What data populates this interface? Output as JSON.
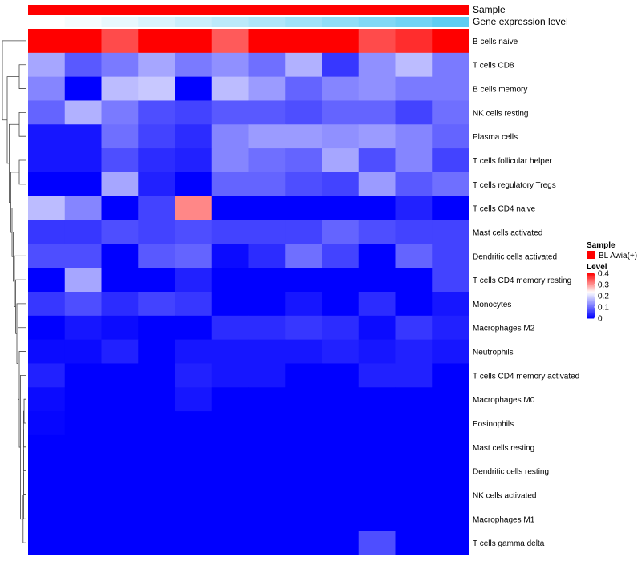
{
  "chart_data": {
    "type": "heatmap",
    "annotation_labels": [
      "Sample",
      "Gene expression level"
    ],
    "sample_annotation": {
      "legend_title": "Sample",
      "entries": [
        {
          "label": "BL Awia(+)",
          "color": "#ff0000"
        }
      ]
    },
    "color_scale": {
      "title": "Level",
      "ticks": [
        "0.4",
        "0.3",
        "0.2",
        "0.1",
        "0"
      ],
      "tick_values": [
        0.4,
        0.3,
        0.2,
        0.1,
        0
      ],
      "min": 0,
      "max": 0.4,
      "colors": [
        "#0000ff",
        "#ffffff",
        "#ff0000"
      ],
      "mid": 0.23
    },
    "gene_expression_level": [
      0.0,
      0.05,
      0.12,
      0.2,
      0.28,
      0.35,
      0.42,
      0.5,
      0.58,
      0.66,
      0.74,
      0.85
    ],
    "rows": [
      "B cells naive",
      "T cells CD8",
      "B cells memory",
      "NK cells resting",
      "Plasma cells",
      "T cells follicular helper",
      "T cells regulatory  Tregs",
      "T cells CD4 naive",
      "Mast cells activated",
      "Dendritic cells activated",
      "T cells CD4 memory resting",
      "Monocytes",
      "Macrophages M2",
      "Neutrophils",
      "T cells CD4 memory activated",
      "Macrophages M0",
      "Eosinophils",
      "Mast cells resting",
      "Dendritic cells resting",
      "NK cells activated",
      "Macrophages M1",
      "T cells gamma delta"
    ],
    "values": [
      [
        0.48,
        0.48,
        0.35,
        0.42,
        0.46,
        0.34,
        0.42,
        0.46,
        0.42,
        0.35,
        0.37,
        0.48
      ],
      [
        0.15,
        0.08,
        0.11,
        0.15,
        0.11,
        0.13,
        0.1,
        0.16,
        0.05,
        0.13,
        0.17,
        0.11
      ],
      [
        0.12,
        0.0,
        0.17,
        0.18,
        0.0,
        0.17,
        0.14,
        0.09,
        0.12,
        0.13,
        0.11,
        0.11
      ],
      [
        0.09,
        0.16,
        0.11,
        0.07,
        0.06,
        0.08,
        0.08,
        0.07,
        0.09,
        0.09,
        0.06,
        0.1
      ],
      [
        0.02,
        0.02,
        0.1,
        0.06,
        0.04,
        0.12,
        0.14,
        0.14,
        0.13,
        0.14,
        0.12,
        0.09
      ],
      [
        0.02,
        0.02,
        0.07,
        0.04,
        0.03,
        0.12,
        0.1,
        0.09,
        0.15,
        0.07,
        0.12,
        0.06
      ],
      [
        0.0,
        0.0,
        0.15,
        0.03,
        0.0,
        0.09,
        0.09,
        0.07,
        0.06,
        0.14,
        0.08,
        0.1
      ],
      [
        0.17,
        0.12,
        0.0,
        0.06,
        0.31,
        0.0,
        0.0,
        0.0,
        0.0,
        0.0,
        0.03,
        0.0
      ],
      [
        0.05,
        0.05,
        0.07,
        0.06,
        0.07,
        0.06,
        0.06,
        0.06,
        0.09,
        0.07,
        0.06,
        0.06
      ],
      [
        0.07,
        0.07,
        0.0,
        0.08,
        0.09,
        0.01,
        0.04,
        0.1,
        0.06,
        0.0,
        0.09,
        0.06
      ],
      [
        0.0,
        0.15,
        0.0,
        0.0,
        0.03,
        0.0,
        0.0,
        0.0,
        0.0,
        0.0,
        0.0,
        0.06
      ],
      [
        0.05,
        0.07,
        0.04,
        0.06,
        0.05,
        0.0,
        0.0,
        0.02,
        0.0,
        0.04,
        0.0,
        0.02
      ],
      [
        0.0,
        0.02,
        0.01,
        0.0,
        0.0,
        0.04,
        0.04,
        0.05,
        0.04,
        0.01,
        0.05,
        0.03
      ],
      [
        0.01,
        0.01,
        0.03,
        0.0,
        0.02,
        0.02,
        0.02,
        0.02,
        0.03,
        0.02,
        0.03,
        0.02
      ],
      [
        0.03,
        0.0,
        0.0,
        0.0,
        0.03,
        0.02,
        0.02,
        0.0,
        0.0,
        0.03,
        0.03,
        0.0
      ],
      [
        0.01,
        0.0,
        0.0,
        0.0,
        0.02,
        0.0,
        0.0,
        0.0,
        0.0,
        0.0,
        0.0,
        0.0
      ],
      [
        0.005,
        0.0,
        0.0,
        0.0,
        0.0,
        0.0,
        0.0,
        0.0,
        0.0,
        0.0,
        0.0,
        0.0
      ],
      [
        0.0,
        0.0,
        0.0,
        0.0,
        0.0,
        0.0,
        0.0,
        0.0,
        0.0,
        0.0,
        0.0,
        0.0
      ],
      [
        0.0,
        0.0,
        0.0,
        0.0,
        0.0,
        0.0,
        0.0,
        0.0,
        0.0,
        0.0,
        0.0,
        0.0
      ],
      [
        0.0,
        0.0,
        0.0,
        0.0,
        0.0,
        0.0,
        0.0,
        0.0,
        0.0,
        0.0,
        0.0,
        0.0
      ],
      [
        0.0,
        0.0,
        0.0,
        0.0,
        0.0,
        0.0,
        0.0,
        0.0,
        0.0,
        0.0,
        0.0,
        0.0
      ],
      [
        0.0,
        0.0,
        0.0,
        0.0,
        0.0,
        0.0,
        0.0,
        0.0,
        0.0,
        0.07,
        0.0,
        0.0
      ]
    ],
    "dendrogram": {
      "merges": [
        [
          -2,
          -3,
          0.3
        ],
        [
          -4,
          -5,
          0.3
        ],
        [
          -6,
          -7,
          0.3
        ],
        [
          -16,
          -17,
          0.1
        ],
        [
          4,
          -18,
          0.12
        ],
        [
          5,
          -19,
          0.12
        ],
        [
          6,
          -20,
          0.12
        ],
        [
          7,
          -21,
          0.12
        ],
        [
          8,
          -22,
          0.14
        ],
        [
          -15,
          9,
          0.25
        ],
        [
          -14,
          10,
          0.3
        ],
        [
          -13,
          11,
          0.35
        ],
        [
          -12,
          12,
          0.4
        ],
        [
          -11,
          13,
          0.45
        ],
        [
          -10,
          14,
          0.5
        ],
        [
          -9,
          15,
          0.55
        ],
        [
          -8,
          16,
          0.6
        ],
        [
          3,
          17,
          0.65
        ],
        [
          2,
          18,
          0.72
        ],
        [
          1,
          19,
          0.8
        ],
        [
          -1,
          20,
          1.0
        ]
      ]
    }
  }
}
